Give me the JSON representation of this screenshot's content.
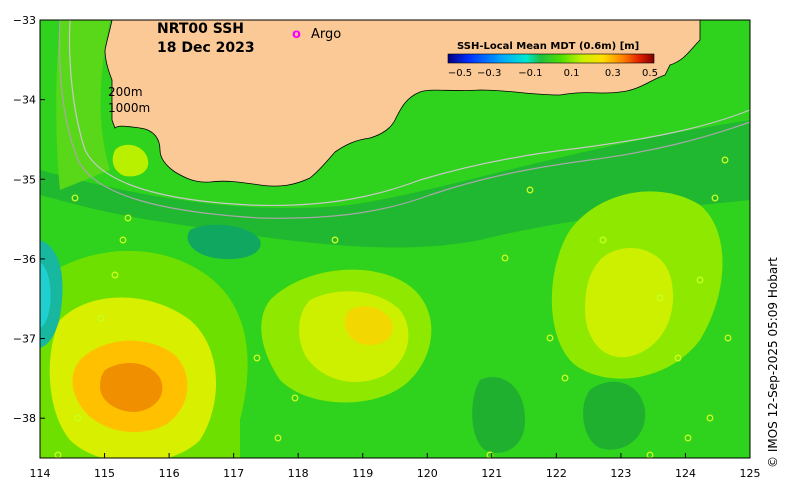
{
  "map": {
    "title": "NRT00 SSH",
    "date": "18 Dec 2023",
    "legend_marker_label": "Argo",
    "legend_marker_symbol": "o",
    "legend_marker_color": "#ff00ff",
    "contour_200m_label": "200m",
    "contour_1000m_label": "1000m",
    "credit": "© IMOS 12-Sep-2025 05:09 Hobart",
    "land_color": "#fbc996",
    "ocean_base_color": "#2fd21c"
  },
  "colorbar": {
    "title": "SSH-Local Mean MDT (0.6m) [m]",
    "ticks": [
      "−0.5",
      "−0.3",
      "−0.1",
      "0.1",
      "0.3",
      "0.5"
    ],
    "range": [
      -0.5,
      0.5
    ],
    "colors": [
      "#000080",
      "#0030ff",
      "#00a0ff",
      "#00e8e0",
      "#20c040",
      "#50e000",
      "#c8f000",
      "#ffe000",
      "#ff8000",
      "#e02000",
      "#800000"
    ]
  },
  "axes": {
    "x_ticks": [
      "114",
      "115",
      "116",
      "117",
      "118",
      "119",
      "120",
      "121",
      "122",
      "123",
      "124",
      "125"
    ],
    "y_ticks": [
      "−33",
      "−34",
      "−35",
      "−36",
      "−37",
      "−38"
    ],
    "lon_range": [
      114,
      125
    ],
    "lat_range": [
      -38.5,
      -33
    ]
  }
}
